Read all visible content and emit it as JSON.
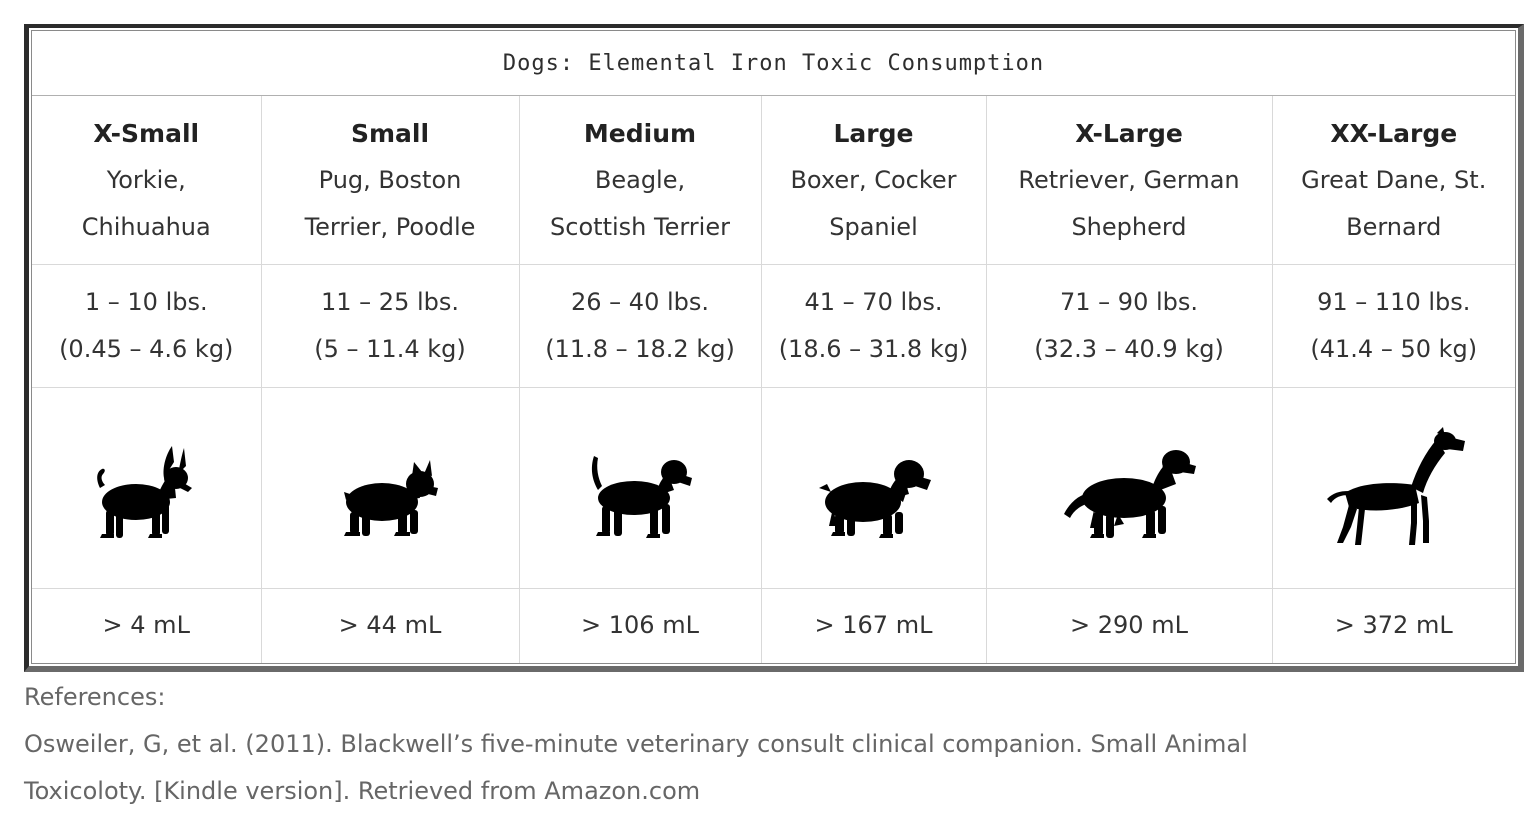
{
  "table": {
    "title": "Dogs: Elemental Iron Toxic Consumption",
    "columns": [
      {
        "size": "X-Small",
        "breeds_line1": "Yorkie,",
        "breeds_line2": "Chihuahua",
        "weight_lbs": "1 – 10 lbs.",
        "weight_kg": "(0.45 – 4.6 kg)",
        "icon": "small-terrier-silhouette-icon",
        "dose": "> 4 mL"
      },
      {
        "size": "Small",
        "breeds_line1": "Pug, Boston",
        "breeds_line2": "Terrier, Poodle",
        "weight_lbs": "11 – 25 lbs.",
        "weight_kg": "(5 – 11.4 kg)",
        "icon": "boston-terrier-silhouette-icon",
        "dose": "> 44 mL"
      },
      {
        "size": "Medium",
        "breeds_line1": "Beagle,",
        "breeds_line2": "Scottish Terrier",
        "weight_lbs": "26 – 40 lbs.",
        "weight_kg": "(11.8 – 18.2 kg)",
        "icon": "beagle-silhouette-icon",
        "dose": "> 106 mL"
      },
      {
        "size": "Large",
        "breeds_line1": "Boxer, Cocker",
        "breeds_line2": "Spaniel",
        "weight_lbs": "41 – 70 lbs.",
        "weight_kg": "(18.6 – 31.8 kg)",
        "icon": "cocker-spaniel-silhouette-icon",
        "dose": "> 167 mL"
      },
      {
        "size": "X-Large",
        "breeds_line1": "Retriever, German",
        "breeds_line2": "Shepherd",
        "weight_lbs": "71 – 90 lbs.",
        "weight_kg": "(32.3 – 40.9 kg)",
        "icon": "retriever-silhouette-icon",
        "dose": "> 290 mL"
      },
      {
        "size": "XX-Large",
        "breeds_line1": "Great Dane, St.",
        "breeds_line2": "Bernard",
        "weight_lbs": "91 – 110 lbs.",
        "weight_kg": "(41.4 – 50 kg)",
        "icon": "great-dane-silhouette-icon",
        "dose": "> 372 mL"
      }
    ]
  },
  "references": {
    "heading": "References:",
    "line1": "Osweiler, G, et al. (2011). Blackwell’s five-minute veterinary consult clinical companion. Small Animal",
    "line2": "Toxicoloty. [Kindle version]. Retrieved from Amazon.com"
  },
  "colors": {
    "frame": "#2b2b2b",
    "silhouette": "#000000",
    "text": "#333333",
    "reference_text": "#666666"
  }
}
